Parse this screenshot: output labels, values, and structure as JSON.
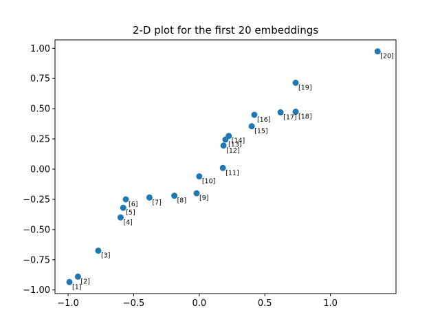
{
  "chart_data": {
    "type": "scatter",
    "title": "2-D plot for the first 20 embeddings",
    "xlabel": "",
    "ylabel": "",
    "xlim": [
      -1.1,
      1.5
    ],
    "ylim": [
      -1.03,
      1.07
    ],
    "x_ticks": [
      -1.0,
      -0.5,
      0.0,
      0.5,
      1.0
    ],
    "x_tick_labels": [
      "−1.0",
      "−0.5",
      "0.0",
      "0.5",
      "1.0"
    ],
    "y_ticks": [
      -1.0,
      -0.75,
      -0.5,
      -0.25,
      0.0,
      0.25,
      0.5,
      0.75,
      1.0
    ],
    "y_tick_labels": [
      "−1.00",
      "−0.75",
      "−0.50",
      "−0.25",
      "0.00",
      "0.25",
      "0.50",
      "0.75",
      "1.00"
    ],
    "grid": false,
    "color": "#1f77b4",
    "points": [
      {
        "label": "[1]",
        "x": -0.99,
        "y": -0.935
      },
      {
        "label": "[2]",
        "x": -0.925,
        "y": -0.89
      },
      {
        "label": "[3]",
        "x": -0.77,
        "y": -0.675
      },
      {
        "label": "[4]",
        "x": -0.6,
        "y": -0.4
      },
      {
        "label": "[5]",
        "x": -0.58,
        "y": -0.32
      },
      {
        "label": "[6]",
        "x": -0.56,
        "y": -0.25
      },
      {
        "label": "[7]",
        "x": -0.38,
        "y": -0.235
      },
      {
        "label": "[8]",
        "x": -0.19,
        "y": -0.22
      },
      {
        "label": "[9]",
        "x": -0.02,
        "y": -0.2
      },
      {
        "label": "[10]",
        "x": 0.0,
        "y": -0.06
      },
      {
        "label": "[11]",
        "x": 0.18,
        "y": 0.01
      },
      {
        "label": "[12]",
        "x": 0.185,
        "y": 0.195
      },
      {
        "label": "[13]",
        "x": 0.2,
        "y": 0.245
      },
      {
        "label": "[14]",
        "x": 0.225,
        "y": 0.275
      },
      {
        "label": "[15]",
        "x": 0.4,
        "y": 0.355
      },
      {
        "label": "[16]",
        "x": 0.42,
        "y": 0.45
      },
      {
        "label": "[17]",
        "x": 0.62,
        "y": 0.47
      },
      {
        "label": "[18]",
        "x": 0.735,
        "y": 0.475
      },
      {
        "label": "[19]",
        "x": 0.735,
        "y": 0.715
      },
      {
        "label": "[20]",
        "x": 1.36,
        "y": 0.975
      }
    ]
  }
}
